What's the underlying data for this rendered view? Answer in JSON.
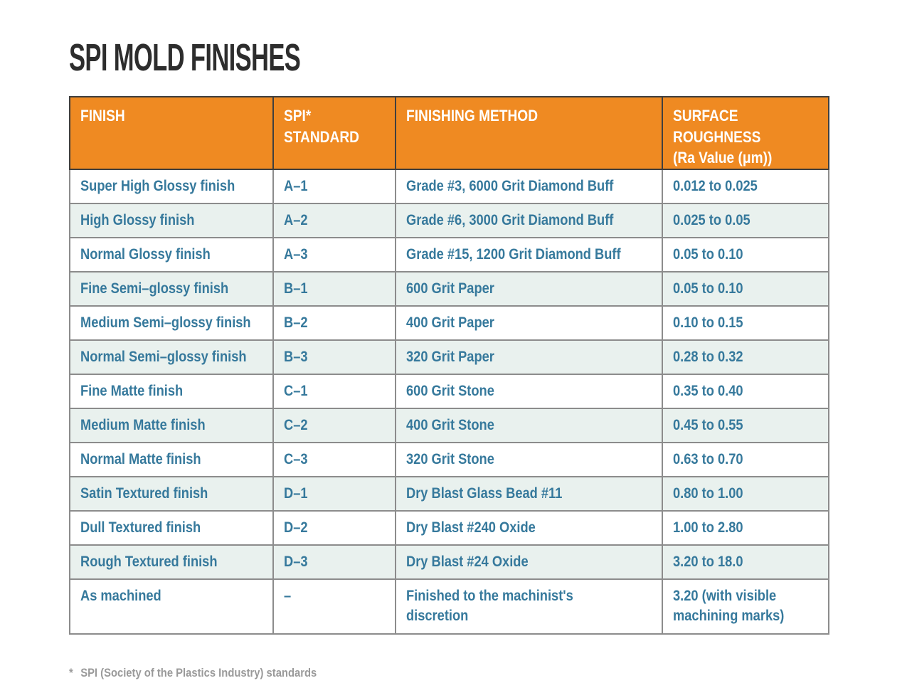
{
  "chart_data": {
    "type": "table",
    "title": "SPI MOLD FINISHES",
    "columns": [
      "FINISH",
      "SPI* STANDARD",
      "FINISHING METHOD",
      "SURFACE ROUGHNESS\n(Ra Value (μm))"
    ],
    "rows": [
      [
        "Super High Glossy finish",
        "A–1",
        "Grade #3, 6000 Grit Diamond Buff",
        "0.012 to 0.025"
      ],
      [
        "High Glossy finish",
        "A–2",
        "Grade #6, 3000 Grit Diamond Buff",
        "0.025 to 0.05"
      ],
      [
        "Normal Glossy finish",
        "A–3",
        "Grade #15, 1200 Grit Diamond Buff",
        "0.05 to 0.10"
      ],
      [
        "Fine Semi–glossy finish",
        "B–1",
        "600 Grit Paper",
        "0.05 to 0.10"
      ],
      [
        "Medium Semi–glossy finish",
        "B–2",
        "400 Grit Paper",
        "0.10 to 0.15"
      ],
      [
        "Normal Semi–glossy finish",
        "B–3",
        "320 Grit Paper",
        "0.28 to 0.32"
      ],
      [
        "Fine Matte finish",
        "C–1",
        "600 Grit Stone",
        "0.35 to 0.40"
      ],
      [
        "Medium Matte finish",
        "C–2",
        "400 Grit Stone",
        "0.45 to 0.55"
      ],
      [
        "Normal Matte finish",
        "C–3",
        "320 Grit Stone",
        "0.63 to 0.70"
      ],
      [
        "Satin Textured finish",
        "D–1",
        "Dry Blast Glass Bead #11",
        "0.80 to 1.00"
      ],
      [
        "Dull Textured finish",
        "D–2",
        "Dry Blast #240 Oxide",
        "1.00 to 2.80"
      ],
      [
        "Rough Textured finish",
        "D–3",
        "Dry Blast #24 Oxide",
        "3.20 to 18.0"
      ],
      [
        "As machined",
        "–",
        "Finished to the machinist's\ndiscretion",
        "3.20 (with visible\nmachining marks)"
      ]
    ],
    "footnote": {
      "marker": "*",
      "text": "SPI (Society of the Plastics Industry) standards"
    }
  },
  "colors": {
    "header_bg": "#EF8A22",
    "header_text": "#FFFFFF",
    "body_text": "#36799C",
    "row_alt_bg": "#E9F1EE",
    "row_bg": "#FFFFFF",
    "border": "#8C8C8C",
    "header_divider": "#3F3F3F",
    "title_text": "#2D2D2D",
    "footnote_text": "#9A9A9A"
  }
}
